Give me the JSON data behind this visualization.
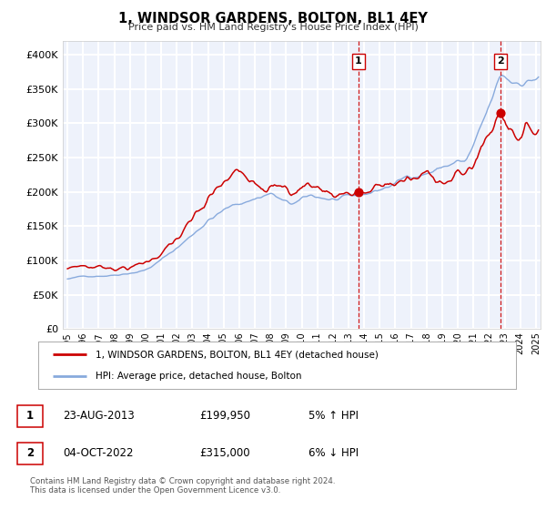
{
  "title": "1, WINDSOR GARDENS, BOLTON, BL1 4EY",
  "subtitle": "Price paid vs. HM Land Registry's House Price Index (HPI)",
  "legend_line1": "1, WINDSOR GARDENS, BOLTON, BL1 4EY (detached house)",
  "legend_line2": "HPI: Average price, detached house, Bolton",
  "annotation1_date": "23-AUG-2013",
  "annotation1_price": "£199,950",
  "annotation1_hpi": "5% ↑ HPI",
  "annotation1_year": 2013.64,
  "annotation1_value": 199950,
  "annotation2_date": "04-OCT-2022",
  "annotation2_price": "£315,000",
  "annotation2_hpi": "6% ↓ HPI",
  "annotation2_year": 2022.75,
  "annotation2_value": 315000,
  "footer1": "Contains HM Land Registry data © Crown copyright and database right 2024.",
  "footer2": "This data is licensed under the Open Government Licence v3.0.",
  "ylim_max": 420000,
  "xlim_start": 1994.7,
  "xlim_end": 2025.3,
  "line_color_red": "#cc0000",
  "line_color_blue": "#88aadd",
  "background_color": "#eef2fb",
  "grid_color": "#ffffff",
  "vline_color": "#cc0000",
  "fig_bg": "#ffffff"
}
